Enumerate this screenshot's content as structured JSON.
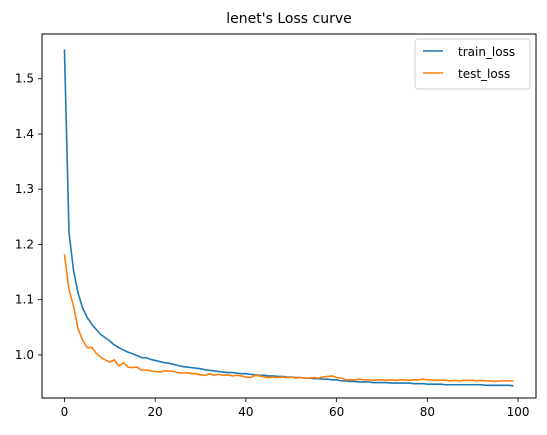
{
  "chart_data": {
    "type": "line",
    "title": "lenet's Loss curve",
    "xlabel": "",
    "ylabel": "",
    "xlim": [
      -4.95,
      103.95
    ],
    "ylim": [
      0.922,
      1.581
    ],
    "xticks": [
      0,
      20,
      40,
      60,
      80,
      100
    ],
    "yticks": [
      1.0,
      1.1,
      1.2,
      1.3,
      1.4,
      1.5
    ],
    "ytick_labels": [
      "1.0",
      "1.1",
      "1.2",
      "1.3",
      "1.4",
      "1.5"
    ],
    "grid": false,
    "legend_position": "top-right",
    "series": [
      {
        "name": "train_loss",
        "color": "#1f77b4",
        "x": [
          0,
          1,
          2,
          3,
          4,
          5,
          6,
          7,
          8,
          9,
          10,
          11,
          12,
          13,
          14,
          15,
          16,
          17,
          18,
          19,
          20,
          21,
          22,
          23,
          24,
          25,
          26,
          27,
          28,
          29,
          30,
          31,
          32,
          33,
          34,
          35,
          36,
          37,
          38,
          39,
          40,
          41,
          42,
          43,
          44,
          45,
          46,
          47,
          48,
          49,
          50,
          51,
          52,
          53,
          54,
          55,
          56,
          57,
          58,
          59,
          60,
          61,
          62,
          63,
          64,
          65,
          66,
          67,
          68,
          69,
          70,
          71,
          72,
          73,
          74,
          75,
          76,
          77,
          78,
          79,
          80,
          81,
          82,
          83,
          84,
          85,
          86,
          87,
          88,
          89,
          90,
          91,
          92,
          93,
          94,
          95,
          96,
          97,
          98,
          99
        ],
        "values": [
          1.553,
          1.222,
          1.153,
          1.112,
          1.085,
          1.068,
          1.056,
          1.046,
          1.037,
          1.031,
          1.025,
          1.018,
          1.013,
          1.009,
          1.005,
          1.002,
          0.999,
          0.995,
          0.995,
          0.992,
          0.99,
          0.988,
          0.986,
          0.985,
          0.983,
          0.981,
          0.979,
          0.978,
          0.977,
          0.976,
          0.975,
          0.973,
          0.972,
          0.971,
          0.97,
          0.969,
          0.968,
          0.968,
          0.967,
          0.966,
          0.966,
          0.965,
          0.964,
          0.963,
          0.963,
          0.962,
          0.962,
          0.961,
          0.961,
          0.96,
          0.96,
          0.959,
          0.959,
          0.958,
          0.958,
          0.957,
          0.957,
          0.956,
          0.956,
          0.955,
          0.955,
          0.953,
          0.953,
          0.952,
          0.952,
          0.951,
          0.951,
          0.951,
          0.95,
          0.95,
          0.95,
          0.95,
          0.949,
          0.949,
          0.949,
          0.949,
          0.949,
          0.948,
          0.948,
          0.948,
          0.947,
          0.947,
          0.947,
          0.947,
          0.946,
          0.946,
          0.946,
          0.946,
          0.946,
          0.946,
          0.946,
          0.946,
          0.946,
          0.945,
          0.945,
          0.945,
          0.945,
          0.945,
          0.945,
          0.944
        ]
      },
      {
        "name": "test_loss",
        "color": "#ff7f0e",
        "x": [
          0,
          1,
          2,
          3,
          4,
          5,
          6,
          7,
          8,
          9,
          10,
          11,
          12,
          13,
          14,
          15,
          16,
          17,
          18,
          19,
          20,
          21,
          22,
          23,
          24,
          25,
          26,
          27,
          28,
          29,
          30,
          31,
          32,
          33,
          34,
          35,
          36,
          37,
          38,
          39,
          40,
          41,
          42,
          43,
          44,
          45,
          46,
          47,
          48,
          49,
          50,
          51,
          52,
          53,
          54,
          55,
          56,
          57,
          58,
          59,
          60,
          61,
          62,
          63,
          64,
          65,
          66,
          67,
          68,
          69,
          70,
          71,
          72,
          73,
          74,
          75,
          76,
          77,
          78,
          79,
          80,
          81,
          82,
          83,
          84,
          85,
          86,
          87,
          88,
          89,
          90,
          91,
          92,
          93,
          94,
          95,
          96,
          97,
          98,
          99
        ],
        "values": [
          1.182,
          1.118,
          1.088,
          1.047,
          1.027,
          1.013,
          1.014,
          1.003,
          0.996,
          0.991,
          0.987,
          0.991,
          0.98,
          0.986,
          0.978,
          0.977,
          0.978,
          0.972,
          0.973,
          0.971,
          0.97,
          0.969,
          0.971,
          0.971,
          0.97,
          0.968,
          0.967,
          0.968,
          0.966,
          0.966,
          0.964,
          0.963,
          0.966,
          0.963,
          0.965,
          0.963,
          0.964,
          0.962,
          0.963,
          0.962,
          0.96,
          0.959,
          0.963,
          0.962,
          0.96,
          0.959,
          0.96,
          0.959,
          0.96,
          0.959,
          0.96,
          0.958,
          0.959,
          0.958,
          0.958,
          0.959,
          0.958,
          0.96,
          0.961,
          0.962,
          0.959,
          0.958,
          0.955,
          0.955,
          0.955,
          0.956,
          0.955,
          0.955,
          0.954,
          0.955,
          0.955,
          0.954,
          0.955,
          0.954,
          0.955,
          0.955,
          0.954,
          0.955,
          0.955,
          0.956,
          0.955,
          0.954,
          0.954,
          0.954,
          0.954,
          0.953,
          0.954,
          0.953,
          0.954,
          0.954,
          0.954,
          0.953,
          0.954,
          0.953,
          0.953,
          0.952,
          0.953,
          0.953,
          0.953,
          0.953
        ]
      }
    ]
  }
}
